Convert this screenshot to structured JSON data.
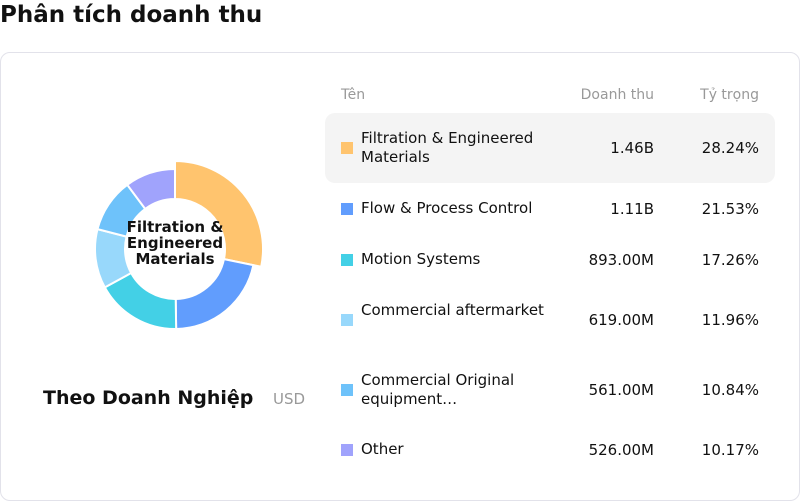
{
  "page_title": "Phân tích doanh thu",
  "subtitle": "Theo Doanh Nghiệp",
  "unit": "USD",
  "center_label": "Filtration & Engineered Materials",
  "table": {
    "headers": {
      "name": "Tên",
      "revenue": "Doanh thu",
      "share": "Tỷ trọng"
    }
  },
  "chart_data": {
    "type": "pie",
    "variant": "donut",
    "highlighted": "Filtration & Engineered Materials",
    "categories": [
      "Filtration & Engineered Materials",
      "Flow & Process Control",
      "Motion Systems",
      "Commercial aftermarket",
      "Commercial Original equipment…",
      "Other"
    ],
    "revenue_labels": [
      "1.46B",
      "1.11B",
      "893.00M",
      "619.00M",
      "561.00M",
      "526.00M"
    ],
    "values": [
      28.24,
      21.53,
      17.26,
      11.96,
      10.84,
      10.17
    ],
    "colors": [
      "#FFC46E",
      "#619DFD",
      "#43D0E6",
      "#98D8FB",
      "#6EC2FA",
      "#A0A3FC"
    ]
  }
}
